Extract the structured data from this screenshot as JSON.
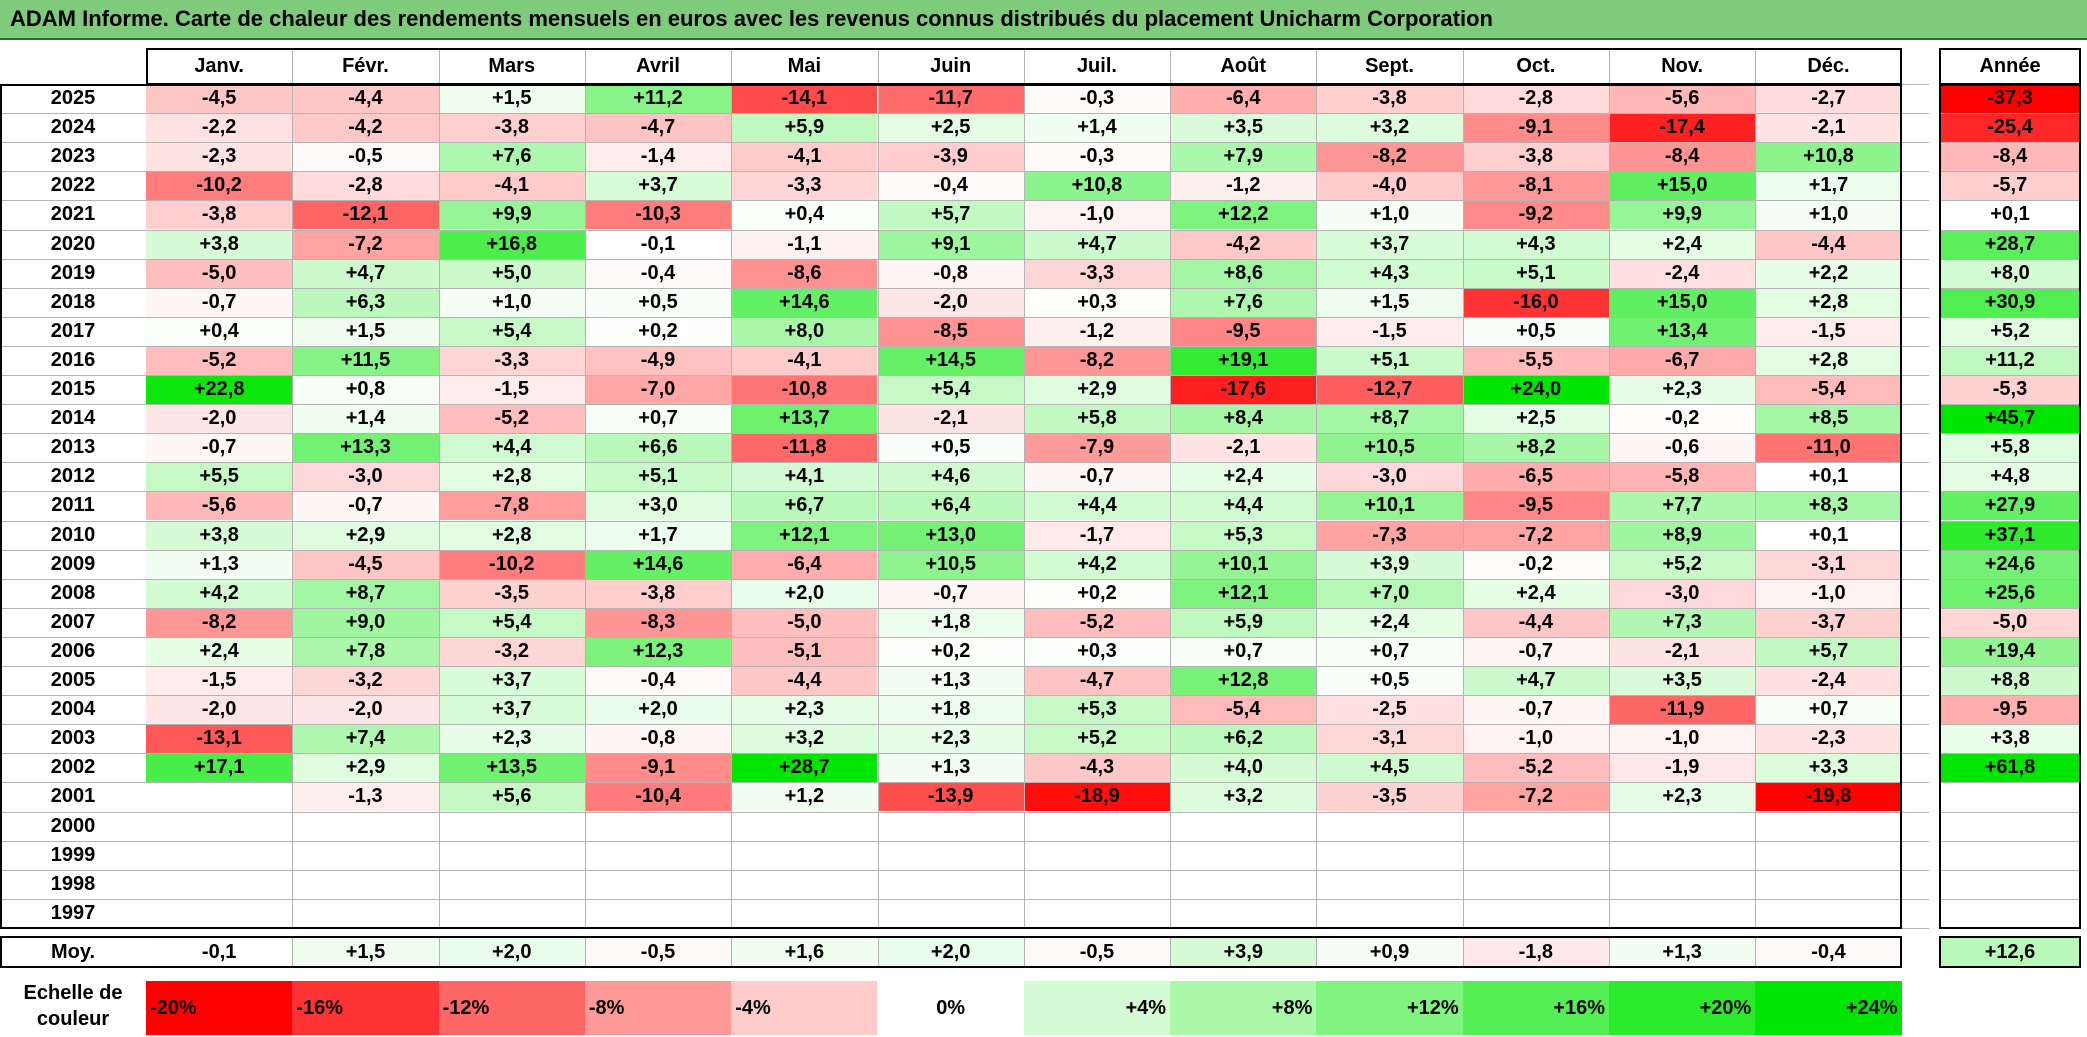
{
  "title": "ADAM Informe. Carte de chaleur des rendements mensuels en euros avec les revenus connus distribués du placement Unicharm Corporation",
  "chart_data": {
    "type": "heatmap",
    "title": "ADAM Informe. Carte de chaleur des rendements mensuels en euros avec les revenus connus distribués du placement Unicharm Corporation",
    "columns": [
      "Janv.",
      "Févr.",
      "Mars",
      "Avril",
      "Mai",
      "Juin",
      "Juil.",
      "Août",
      "Sept.",
      "Oct.",
      "Nov.",
      "Déc."
    ],
    "year_header": "Année",
    "avg_label": "Moy.",
    "rows": [
      {
        "year": "2025",
        "values": [
          "-4,5",
          "-4,4",
          "+1,5",
          "+11,2",
          "-14,1",
          "-11,7",
          "-0,3",
          "-6,4",
          "-3,8",
          "-2,8",
          "-5,6",
          "-2,7"
        ],
        "annual": "-37,3"
      },
      {
        "year": "2024",
        "values": [
          "-2,2",
          "-4,2",
          "-3,8",
          "-4,7",
          "+5,9",
          "+2,5",
          "+1,4",
          "+3,5",
          "+3,2",
          "-9,1",
          "-17,4",
          "-2,1"
        ],
        "annual": "-25,4"
      },
      {
        "year": "2023",
        "values": [
          "-2,3",
          "-0,5",
          "+7,6",
          "-1,4",
          "-4,1",
          "-3,9",
          "-0,3",
          "+7,9",
          "-8,2",
          "-3,8",
          "-8,4",
          "+10,8"
        ],
        "annual": "-8,4"
      },
      {
        "year": "2022",
        "values": [
          "-10,2",
          "-2,8",
          "-4,1",
          "+3,7",
          "-3,3",
          "-0,4",
          "+10,8",
          "-1,2",
          "-4,0",
          "-8,1",
          "+15,0",
          "+1,7"
        ],
        "annual": "-5,7"
      },
      {
        "year": "2021",
        "values": [
          "-3,8",
          "-12,1",
          "+9,9",
          "-10,3",
          "+0,4",
          "+5,7",
          "-1,0",
          "+12,2",
          "+1,0",
          "-9,2",
          "+9,9",
          "+1,0"
        ],
        "annual": "+0,1"
      },
      {
        "year": "2020",
        "values": [
          "+3,8",
          "-7,2",
          "+16,8",
          "-0,1",
          "-1,1",
          "+9,1",
          "+4,7",
          "-4,2",
          "+3,7",
          "+4,3",
          "+2,4",
          "-4,4"
        ],
        "annual": "+28,7"
      },
      {
        "year": "2019",
        "values": [
          "-5,0",
          "+4,7",
          "+5,0",
          "-0,4",
          "-8,6",
          "-0,8",
          "-3,3",
          "+8,6",
          "+4,3",
          "+5,1",
          "-2,4",
          "+2,2"
        ],
        "annual": "+8,0"
      },
      {
        "year": "2018",
        "values": [
          "-0,7",
          "+6,3",
          "+1,0",
          "+0,5",
          "+14,6",
          "-2,0",
          "+0,3",
          "+7,6",
          "+1,5",
          "-16,0",
          "+15,0",
          "+2,8"
        ],
        "annual": "+30,9"
      },
      {
        "year": "2017",
        "values": [
          "+0,4",
          "+1,5",
          "+5,4",
          "+0,2",
          "+8,0",
          "-8,5",
          "-1,2",
          "-9,5",
          "-1,5",
          "+0,5",
          "+13,4",
          "-1,5"
        ],
        "annual": "+5,2"
      },
      {
        "year": "2016",
        "values": [
          "-5,2",
          "+11,5",
          "-3,3",
          "-4,9",
          "-4,1",
          "+14,5",
          "-8,2",
          "+19,1",
          "+5,1",
          "-5,5",
          "-6,7",
          "+2,8"
        ],
        "annual": "+11,2"
      },
      {
        "year": "2015",
        "values": [
          "+22,8",
          "+0,8",
          "-1,5",
          "-7,0",
          "-10,8",
          "+5,4",
          "+2,9",
          "-17,6",
          "-12,7",
          "+24,0",
          "+2,3",
          "-5,4"
        ],
        "annual": "-5,3"
      },
      {
        "year": "2014",
        "values": [
          "-2,0",
          "+1,4",
          "-5,2",
          "+0,7",
          "+13,7",
          "-2,1",
          "+5,8",
          "+8,4",
          "+8,7",
          "+2,5",
          "-0,2",
          "+8,5"
        ],
        "annual": "+45,7"
      },
      {
        "year": "2013",
        "values": [
          "-0,7",
          "+13,3",
          "+4,4",
          "+6,6",
          "-11,8",
          "+0,5",
          "-7,9",
          "-2,1",
          "+10,5",
          "+8,2",
          "-0,6",
          "-11,0"
        ],
        "annual": "+5,8"
      },
      {
        "year": "2012",
        "values": [
          "+5,5",
          "-3,0",
          "+2,8",
          "+5,1",
          "+4,1",
          "+4,6",
          "-0,7",
          "+2,4",
          "-3,0",
          "-6,5",
          "-5,8",
          "+0,1"
        ],
        "annual": "+4,8"
      },
      {
        "year": "2011",
        "values": [
          "-5,6",
          "-0,7",
          "-7,8",
          "+3,0",
          "+6,7",
          "+6,4",
          "+4,4",
          "+4,4",
          "+10,1",
          "-9,5",
          "+7,7",
          "+8,3"
        ],
        "annual": "+27,9"
      },
      {
        "year": "2010",
        "values": [
          "+3,8",
          "+2,9",
          "+2,8",
          "+1,7",
          "+12,1",
          "+13,0",
          "-1,7",
          "+5,3",
          "-7,3",
          "-7,2",
          "+8,9",
          "+0,1"
        ],
        "annual": "+37,1"
      },
      {
        "year": "2009",
        "values": [
          "+1,3",
          "-4,5",
          "-10,2",
          "+14,6",
          "-6,4",
          "+10,5",
          "+4,2",
          "+10,1",
          "+3,9",
          "-0,2",
          "+5,2",
          "-3,1"
        ],
        "annual": "+24,6"
      },
      {
        "year": "2008",
        "values": [
          "+4,2",
          "+8,7",
          "-3,5",
          "-3,8",
          "+2,0",
          "-0,7",
          "+0,2",
          "+12,1",
          "+7,0",
          "+2,4",
          "-3,0",
          "-1,0"
        ],
        "annual": "+25,6"
      },
      {
        "year": "2007",
        "values": [
          "-8,2",
          "+9,0",
          "+5,4",
          "-8,3",
          "-5,0",
          "+1,8",
          "-5,2",
          "+5,9",
          "+2,4",
          "-4,4",
          "+7,3",
          "-3,7"
        ],
        "annual": "-5,0"
      },
      {
        "year": "2006",
        "values": [
          "+2,4",
          "+7,8",
          "-3,2",
          "+12,3",
          "-5,1",
          "+0,2",
          "+0,3",
          "+0,7",
          "+0,7",
          "-0,7",
          "-2,1",
          "+5,7"
        ],
        "annual": "+19,4"
      },
      {
        "year": "2005",
        "values": [
          "-1,5",
          "-3,2",
          "+3,7",
          "-0,4",
          "-4,4",
          "+1,3",
          "-4,7",
          "+12,8",
          "+0,5",
          "+4,7",
          "+3,5",
          "-2,4"
        ],
        "annual": "+8,8"
      },
      {
        "year": "2004",
        "values": [
          "-2,0",
          "-2,0",
          "+3,7",
          "+2,0",
          "+2,3",
          "+1,8",
          "+5,3",
          "-5,4",
          "-2,5",
          "-0,7",
          "-11,9",
          "+0,7"
        ],
        "annual": "-9,5"
      },
      {
        "year": "2003",
        "values": [
          "-13,1",
          "+7,4",
          "+2,3",
          "-0,8",
          "+3,2",
          "+2,3",
          "+5,2",
          "+6,2",
          "-3,1",
          "-1,0",
          "-1,0",
          "-2,3"
        ],
        "annual": "+3,8"
      },
      {
        "year": "2002",
        "values": [
          "+17,1",
          "+2,9",
          "+13,5",
          "-9,1",
          "+28,7",
          "+1,3",
          "-4,3",
          "+4,0",
          "+4,5",
          "-5,2",
          "-1,9",
          "+3,3"
        ],
        "annual": "+61,8"
      },
      {
        "year": "2001",
        "values": [
          "",
          "-1,3",
          "+5,6",
          "-10,4",
          "+1,2",
          "-13,9",
          "-18,9",
          "+3,2",
          "-3,5",
          "-7,2",
          "+2,3",
          "-19,8"
        ],
        "annual": ""
      },
      {
        "year": "2000",
        "values": [
          "",
          "",
          "",
          "",
          "",
          "",
          "",
          "",
          "",
          "",
          "",
          ""
        ],
        "annual": ""
      },
      {
        "year": "1999",
        "values": [
          "",
          "",
          "",
          "",
          "",
          "",
          "",
          "",
          "",
          "",
          "",
          ""
        ],
        "annual": ""
      },
      {
        "year": "1998",
        "values": [
          "",
          "",
          "",
          "",
          "",
          "",
          "",
          "",
          "",
          "",
          "",
          ""
        ],
        "annual": ""
      },
      {
        "year": "1997",
        "values": [
          "",
          "",
          "",
          "",
          "",
          "",
          "",
          "",
          "",
          "",
          "",
          ""
        ],
        "annual": ""
      }
    ],
    "averages": [
      "-0,1",
      "+1,5",
      "+2,0",
      "-0,5",
      "+1,6",
      "+2,0",
      "-0,5",
      "+3,9",
      "+0,9",
      "-1,8",
      "+1,3",
      "-0,4"
    ],
    "annual_average": "+12,6",
    "color_scale": {
      "label_line1": "Echelle de",
      "label_line2": "couleur",
      "stops": [
        "-20%",
        "-16%",
        "-12%",
        "-8%",
        "-4%",
        "0%",
        "+4%",
        "+8%",
        "+12%",
        "+16%",
        "+20%",
        "+24%"
      ],
      "negative_color": "#ff0000",
      "neutral_color": "#ffffff",
      "positive_color": "#00e600"
    }
  }
}
